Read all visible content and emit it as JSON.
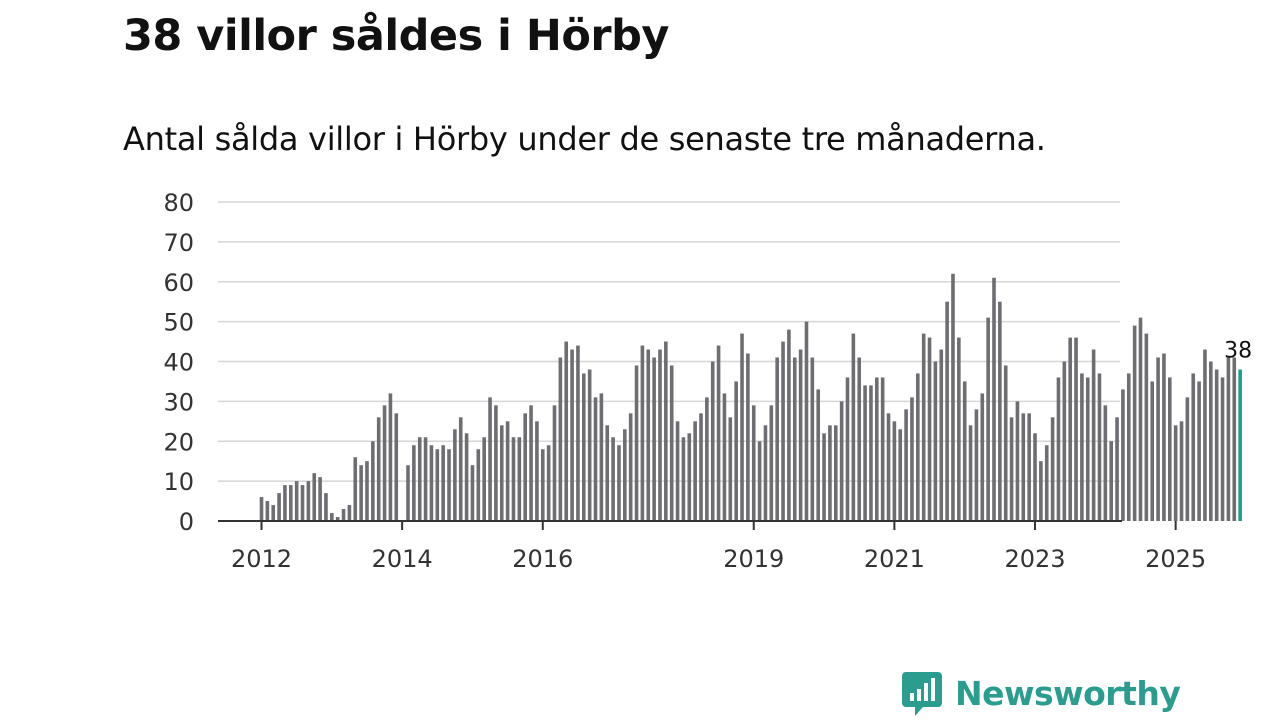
{
  "header": {
    "title": "38 villor såldes i Hörby",
    "subtitle": "Antal sålda villor i Hörby under de senaste tre månaderna."
  },
  "brand": {
    "name": "Newsworthy",
    "icon": "newsworthy-logo-icon",
    "color": "#2a9d8f"
  },
  "colors": {
    "bar": "#6d6d72",
    "highlight": "#1a9e8e",
    "grid": "#d6d6d6",
    "axis": "#333333"
  },
  "chart_data": {
    "type": "bar",
    "title": "Antal sålda villor i Hörby under de senaste tre månaderna.",
    "xlabel": "",
    "ylabel": "",
    "ylim": [
      0,
      80
    ],
    "yticks": [
      0,
      10,
      20,
      30,
      40,
      50,
      60,
      70,
      80
    ],
    "grid": true,
    "legend": "none",
    "start": "2012-01",
    "xticks": [
      {
        "label": "2012",
        "index": 0
      },
      {
        "label": "2014",
        "index": 24
      },
      {
        "label": "2016",
        "index": 48
      },
      {
        "label": "2019",
        "index": 84
      },
      {
        "label": "2021",
        "index": 108
      },
      {
        "label": "2023",
        "index": 132
      },
      {
        "label": "2025",
        "index": 156
      }
    ],
    "values": [
      6,
      5,
      4,
      7,
      9,
      9,
      10,
      9,
      10,
      12,
      11,
      7,
      2,
      1,
      3,
      4,
      16,
      14,
      15,
      20,
      26,
      29,
      32,
      27,
      0,
      14,
      19,
      21,
      21,
      19,
      18,
      19,
      18,
      23,
      26,
      22,
      14,
      18,
      21,
      31,
      29,
      24,
      25,
      21,
      21,
      27,
      29,
      25,
      18,
      19,
      29,
      41,
      45,
      43,
      44,
      37,
      38,
      31,
      32,
      24,
      21,
      19,
      23,
      27,
      39,
      44,
      43,
      41,
      43,
      45,
      39,
      25,
      21,
      22,
      25,
      27,
      31,
      40,
      44,
      32,
      26,
      35,
      47,
      42,
      29,
      20,
      24,
      29,
      41,
      45,
      48,
      41,
      43,
      50,
      41,
      33,
      22,
      24,
      24,
      30,
      36,
      47,
      41,
      34,
      34,
      36,
      36,
      27,
      25,
      23,
      28,
      31,
      37,
      47,
      46,
      40,
      43,
      55,
      62,
      46,
      35,
      24,
      28,
      32,
      51,
      61,
      55,
      39,
      26,
      30,
      27,
      27,
      22,
      15,
      19,
      26,
      36,
      40,
      46,
      46,
      37,
      36,
      43,
      37,
      29,
      20,
      26,
      33,
      37,
      49,
      51,
      47,
      35,
      41,
      42,
      36,
      24,
      25,
      31,
      37,
      35,
      43,
      40,
      38,
      36,
      41,
      41,
      38
    ],
    "highlight_index": 167,
    "highlight_label": "38"
  }
}
